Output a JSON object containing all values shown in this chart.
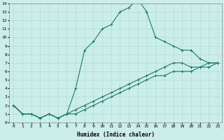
{
  "xlabel": "Humidex (Indice chaleur)",
  "bg_color": "#cceee8",
  "grid_color": "#b0ddd8",
  "line_color": "#1a7a6e",
  "xlim": [
    -0.5,
    23.5
  ],
  "ylim": [
    0,
    14
  ],
  "xticks": [
    0,
    1,
    2,
    3,
    4,
    5,
    6,
    7,
    8,
    9,
    10,
    11,
    12,
    13,
    14,
    15,
    16,
    17,
    18,
    19,
    20,
    21,
    22,
    23
  ],
  "yticks": [
    0,
    1,
    2,
    3,
    4,
    5,
    6,
    7,
    8,
    9,
    10,
    11,
    12,
    13,
    14
  ],
  "curve1_x": [
    0,
    1,
    2,
    3,
    4,
    5,
    6,
    7,
    8,
    9,
    10,
    11,
    12,
    13,
    14,
    15,
    16,
    17,
    18,
    19,
    20,
    21,
    22,
    23
  ],
  "curve1_y": [
    2.0,
    1.0,
    1.0,
    0.5,
    1.0,
    0.5,
    1.0,
    4.0,
    8.5,
    9.5,
    11.0,
    11.5,
    13.0,
    13.5,
    14.5,
    13.0,
    10.0,
    9.5,
    9.0,
    8.5,
    8.5,
    7.5,
    7.0,
    7.0
  ],
  "curve2_x": [
    0,
    1,
    2,
    3,
    4,
    5,
    6,
    7,
    8,
    9,
    10,
    11,
    12,
    13,
    14,
    15,
    16,
    17,
    18,
    19,
    20,
    21,
    22,
    23
  ],
  "curve2_y": [
    2.0,
    1.0,
    1.0,
    0.5,
    1.0,
    0.5,
    1.0,
    1.5,
    2.0,
    2.5,
    3.0,
    3.5,
    4.0,
    4.5,
    5.0,
    5.5,
    6.0,
    6.5,
    7.0,
    7.0,
    6.5,
    6.5,
    6.5,
    7.0
  ],
  "curve3_x": [
    0,
    1,
    2,
    3,
    4,
    5,
    6,
    7,
    8,
    9,
    10,
    11,
    12,
    13,
    14,
    15,
    16,
    17,
    18,
    19,
    20,
    21,
    22,
    23
  ],
  "curve3_y": [
    2.0,
    1.0,
    1.0,
    0.5,
    1.0,
    0.5,
    1.0,
    1.0,
    1.5,
    2.0,
    2.5,
    3.0,
    3.5,
    4.0,
    4.5,
    5.0,
    5.5,
    5.5,
    6.0,
    6.0,
    6.0,
    6.5,
    7.0,
    7.0
  ],
  "xlabel_fontsize": 5.5,
  "tick_fontsize": 4.5,
  "linewidth": 0.8,
  "markersize": 2.5
}
